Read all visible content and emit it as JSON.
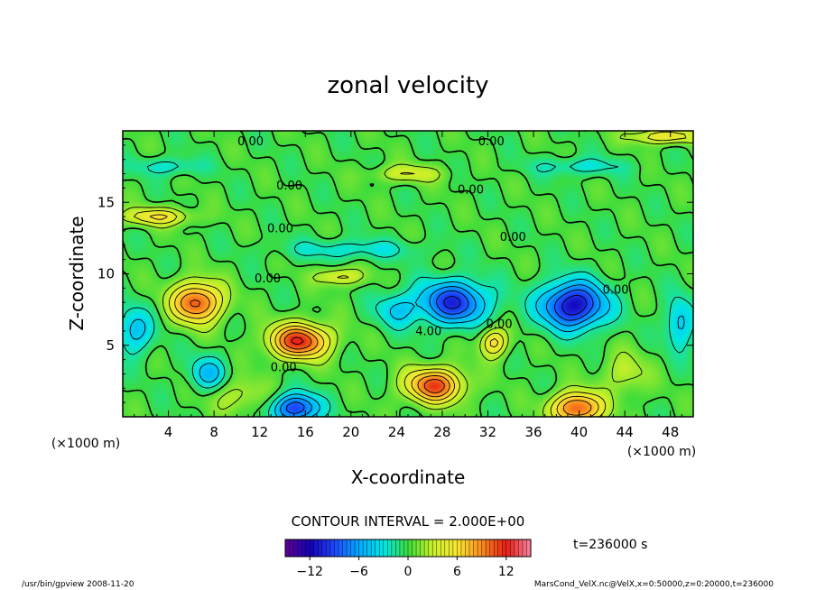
{
  "chart_data": {
    "type": "heatmap",
    "title": "zonal velocity",
    "xlabel": "X-coordinate",
    "ylabel": "Z-coordinate",
    "x_unit": "(×1000 m)",
    "z_unit": "(×1000 m)",
    "x_range": [
      0,
      50
    ],
    "z_range": [
      0,
      20
    ],
    "x_ticks": [
      4,
      8,
      12,
      16,
      20,
      24,
      28,
      32,
      36,
      40,
      44,
      48
    ],
    "z_ticks": [
      5,
      10,
      15
    ],
    "contour_interval_text": "CONTOUR INTERVAL = 2.000E+00",
    "time_text": "t=236000 s",
    "colorbar": {
      "range": [
        -15,
        15
      ],
      "ticks": [
        -12,
        -6,
        0,
        6,
        12
      ],
      "tick_labels": [
        "−12",
        "−6",
        "0",
        "6",
        "12"
      ]
    },
    "contour_labels": [
      {
        "text": "0.00",
        "x": 11.2,
        "z": 19.0
      },
      {
        "text": "0.00",
        "x": 32.3,
        "z": 19.0
      },
      {
        "text": "0.00",
        "x": 14.6,
        "z": 15.9
      },
      {
        "text": "0.00",
        "x": 30.5,
        "z": 15.6
      },
      {
        "text": "0.00",
        "x": 13.8,
        "z": 12.9
      },
      {
        "text": "0.00",
        "x": 34.2,
        "z": 12.3
      },
      {
        "text": "0.00",
        "x": 12.7,
        "z": 9.4
      },
      {
        "text": "0.00",
        "x": 43.2,
        "z": 8.6
      },
      {
        "text": "0.00",
        "x": 33.0,
        "z": 6.2
      },
      {
        "text": "4.00",
        "x": 26.8,
        "z": 5.7
      },
      {
        "text": "0.00",
        "x": 14.1,
        "z": 3.2
      }
    ],
    "features": [
      {
        "x": 6.5,
        "z": 8.0,
        "value": 11,
        "sx": 2.2,
        "sz": 1.4
      },
      {
        "x": 15.5,
        "z": 5.3,
        "value": 12,
        "sx": 2.6,
        "sz": 1.2
      },
      {
        "x": 27.3,
        "z": 2.2,
        "value": 11,
        "sx": 2.5,
        "sz": 1.2
      },
      {
        "x": 39.8,
        "z": 0.6,
        "value": 11,
        "sx": 2.2,
        "sz": 1.1
      },
      {
        "x": 29.0,
        "z": 8.0,
        "value": -10,
        "sx": 3.0,
        "sz": 1.5
      },
      {
        "x": 39.5,
        "z": 7.8,
        "value": -12,
        "sx": 2.8,
        "sz": 1.6
      },
      {
        "x": 15.2,
        "z": 0.6,
        "value": -10,
        "sx": 2.0,
        "sz": 1.0
      },
      {
        "x": 1.0,
        "z": 6.0,
        "value": -5,
        "sx": 1.6,
        "sz": 1.6
      },
      {
        "x": 7.5,
        "z": 3.0,
        "value": -5,
        "sx": 1.6,
        "sz": 1.2
      },
      {
        "x": 24.0,
        "z": 7.5,
        "value": -4,
        "sx": 1.8,
        "sz": 1.2
      },
      {
        "x": 48.8,
        "z": 6.5,
        "value": -5,
        "sx": 1.2,
        "sz": 1.8
      },
      {
        "x": 20.0,
        "z": 11.7,
        "value": -3,
        "sx": 6.0,
        "sz": 0.7
      },
      {
        "x": 32.5,
        "z": 5.2,
        "value": 7,
        "sx": 1.2,
        "sz": 1.0
      },
      {
        "x": 3.0,
        "z": 14.0,
        "value": 6,
        "sx": 3.0,
        "sz": 0.6
      },
      {
        "x": 19.0,
        "z": 9.8,
        "value": 5,
        "sx": 2.0,
        "sz": 0.6
      },
      {
        "x": 47.5,
        "z": 19.6,
        "value": 6,
        "sx": 3.0,
        "sz": 0.5
      },
      {
        "x": 25.0,
        "z": 17.0,
        "value": 4,
        "sx": 3.0,
        "sz": 0.6
      },
      {
        "x": 4.0,
        "z": 17.5,
        "value": -3,
        "sx": 3.0,
        "sz": 0.6
      },
      {
        "x": 40.0,
        "z": 17.5,
        "value": -3,
        "sx": 4.0,
        "sz": 0.6
      },
      {
        "x": 10.0,
        "z": 1.5,
        "value": 3,
        "sx": 2.5,
        "sz": 1.2
      },
      {
        "x": 44.0,
        "z": 3.0,
        "value": 3,
        "sx": 2.0,
        "sz": 1.5
      }
    ]
  },
  "footer": {
    "left": "/usr/bin/gpview  2008-11-20",
    "right": "MarsCond_VelX.nc@VelX,x=0:50000,z=0:20000,t=236000"
  }
}
